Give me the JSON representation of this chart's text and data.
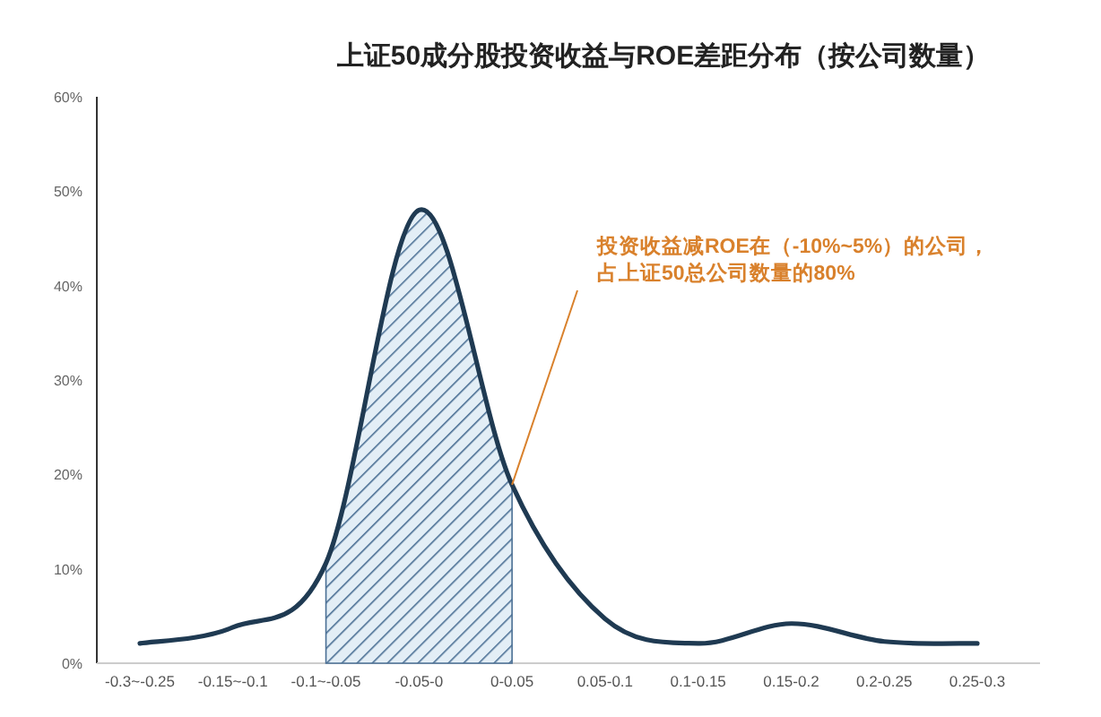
{
  "chart_data": {
    "type": "line",
    "title": "上证50成分股投资收益与ROE差距分布（按公司数量）",
    "categories": [
      "-0.3~-0.25",
      "-0.15~-0.1",
      "-0.1~-0.05",
      "-0.05-0",
      "0-0.05",
      "0.05-0.1",
      "0.1-0.15",
      "0.15-0.2",
      "0.2-0.25",
      "0.25-0.3"
    ],
    "series": [
      {
        "color": "#1f3a52",
        "values": [
          2.1,
          3.8,
          10.6,
          48,
          18.9,
          4.7,
          2.1,
          4.2,
          2.3,
          2.1
        ]
      },
      {
        "type": "area",
        "color": "#4a6f94",
        "values": [
          null,
          null,
          10.6,
          48,
          18.9,
          null,
          null,
          null,
          null,
          null
        ]
      }
    ],
    "ylim": [
      0,
      60
    ],
    "yticks": [
      {
        "value": 0,
        "label": "0%"
      },
      {
        "value": 10,
        "label": "10%"
      },
      {
        "value": 20,
        "label": "20%"
      },
      {
        "value": 30,
        "label": "30%"
      },
      {
        "value": 40,
        "label": "40%"
      },
      {
        "value": 50,
        "label": "50%"
      },
      {
        "value": 60,
        "label": "60%"
      }
    ],
    "annotations": [
      {
        "text": "投资收益减ROE在（-10%~5%）的公司，占上证50总公司数量的80%",
        "x": "0-0.05",
        "y": 18.9
      }
    ],
    "grid": false
  }
}
